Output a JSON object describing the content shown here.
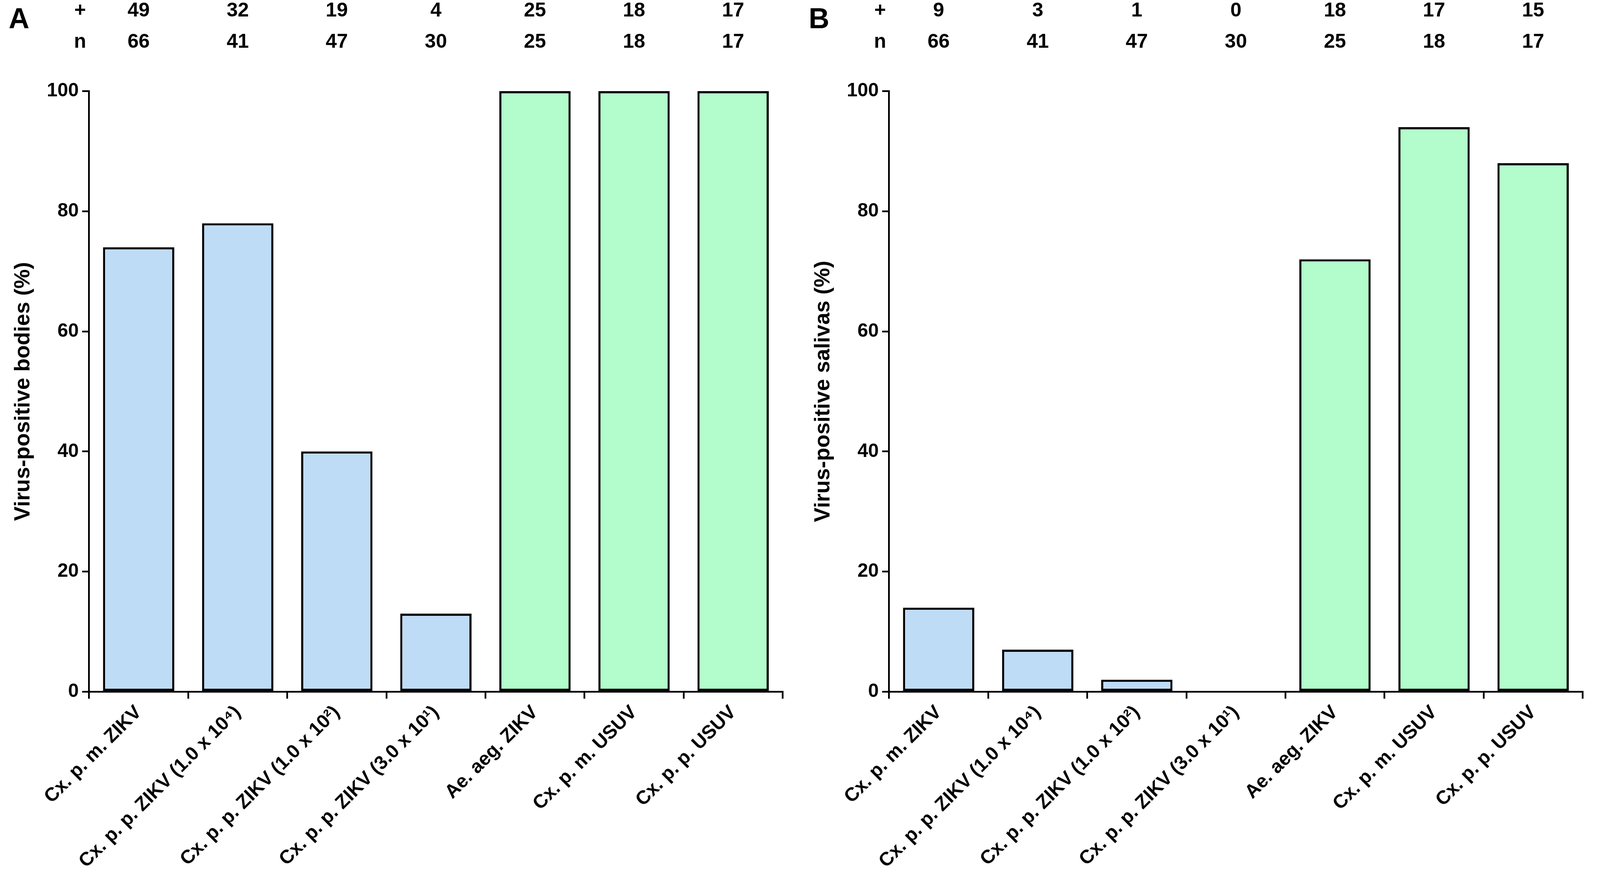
{
  "chart_data": [
    {
      "panel": "A",
      "type": "bar",
      "categories": [
        "Cx. p. m. ZIKV",
        "Cx. p. p. ZIKV (1.0 x 10⁴)",
        "Cx. p. p. ZIKV (1.0 x 10²)",
        "Cx. p. p. ZIKV (3.0 x 10¹)",
        "Ae. aeg. ZIKV",
        "Cx. p. m. USUV",
        "Cx. p. p. USUV"
      ],
      "values": [
        74,
        78,
        40,
        13,
        100,
        100,
        100
      ],
      "colors": [
        "#bfdcf7",
        "#bfdcf7",
        "#bfdcf7",
        "#bfdcf7",
        "#b3fccb",
        "#b3fccb",
        "#b3fccb"
      ],
      "y_label": "Virus-positive bodies (%)",
      "ylim": [
        0,
        100
      ],
      "yticks": [
        0,
        20,
        40,
        60,
        80,
        100
      ],
      "grid": false,
      "legend": false,
      "count_rows": [
        {
          "label": "+",
          "values": [
            49,
            32,
            19,
            4,
            25,
            18,
            17
          ]
        },
        {
          "label": "n",
          "values": [
            66,
            41,
            47,
            30,
            25,
            18,
            17
          ]
        }
      ]
    },
    {
      "panel": "B",
      "type": "bar",
      "categories": [
        "Cx. p. m. ZIKV",
        "Cx. p. p. ZIKV (1.0 x 10⁴)",
        "Cx. p. p. ZIKV (1.0 x 10²)",
        "Cx. p. p. ZIKV (3.0 x 10¹)",
        "Ae. aeg. ZIKV",
        "Cx. p. m. USUV",
        "Cx. p. p. USUV"
      ],
      "values": [
        14,
        7,
        2,
        0,
        72,
        94,
        88
      ],
      "colors": [
        "#bfdcf7",
        "#bfdcf7",
        "#bfdcf7",
        "#bfdcf7",
        "#b3fccb",
        "#b3fccb",
        "#b3fccb"
      ],
      "y_label": "Virus-positive salivas (%)",
      "ylim": [
        0,
        100
      ],
      "yticks": [
        0,
        20,
        40,
        60,
        80,
        100
      ],
      "grid": false,
      "legend": false,
      "count_rows": [
        {
          "label": "+",
          "values": [
            9,
            3,
            1,
            0,
            18,
            17,
            15
          ]
        },
        {
          "label": "n",
          "values": [
            66,
            41,
            47,
            30,
            25,
            18,
            17
          ]
        }
      ]
    }
  ]
}
